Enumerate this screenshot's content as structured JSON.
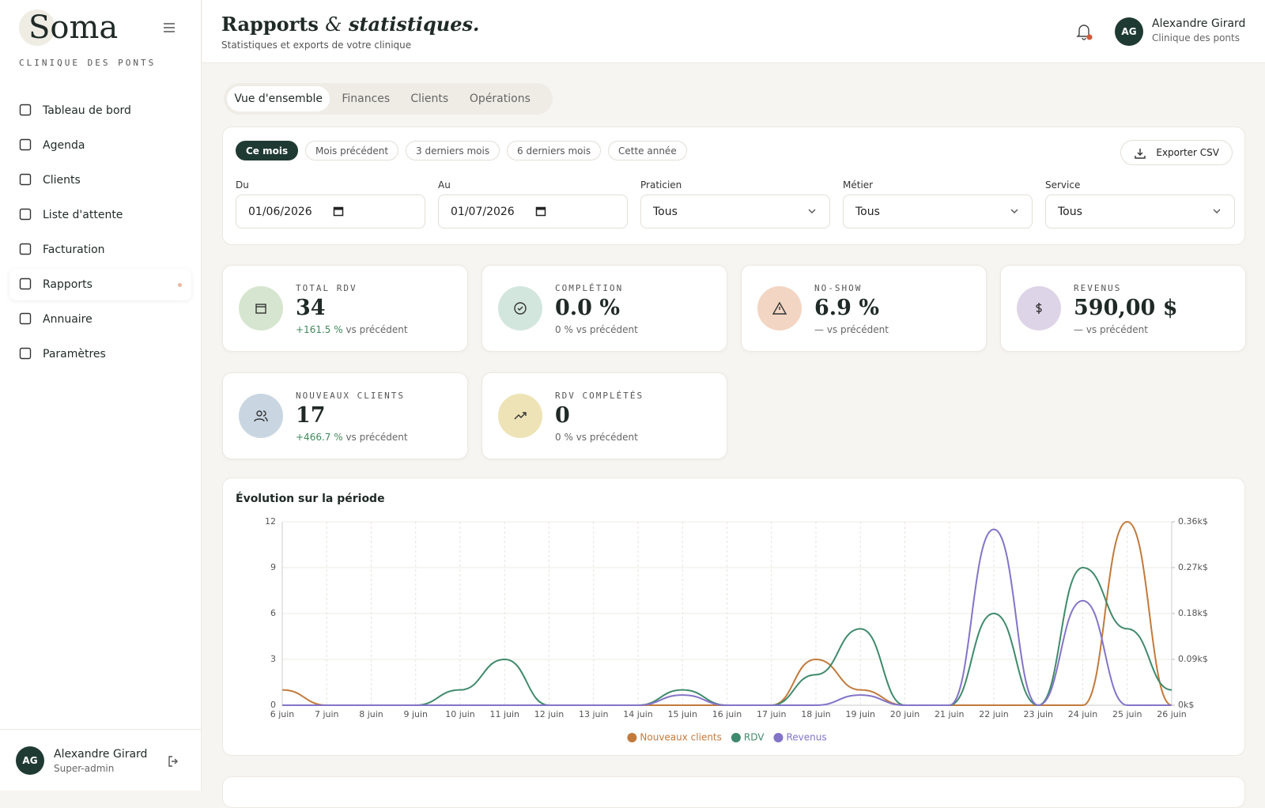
{
  "sidebar": {
    "brand": "Soma",
    "subtitle": "CLINIQUE DES PONTS",
    "nav": [
      "Tableau de bord",
      "Agenda",
      "Clients",
      "Liste d'attente",
      "Facturation",
      "Rapports",
      "Annuaire",
      "Paramètres"
    ],
    "active": 5,
    "user": {
      "initials": "AG",
      "name": "Alexandre Girard",
      "role": "Super-admin"
    }
  },
  "header": {
    "title": "Rapports",
    "title_amp": "&",
    "title_em": "statistiques.",
    "subtitle": "Statistiques et exports de votre clinique",
    "user": {
      "initials": "AG",
      "name": "Alexandre Girard",
      "clinic": "Clinique des ponts"
    }
  },
  "tabs": {
    "items": [
      "Vue d'ensemble",
      "Finances",
      "Clients",
      "Opérations"
    ],
    "active": 0
  },
  "filters": {
    "presets": [
      "Ce mois",
      "Mois précédent",
      "3 derniers mois",
      "6 derniers mois",
      "Cette année"
    ],
    "active_preset": 0,
    "export": "Exporter CSV",
    "fields": [
      {
        "label": "Du",
        "value": "01/06/2026"
      },
      {
        "label": "Au",
        "value": "01/07/2026"
      },
      {
        "label": "Praticien",
        "value": "Tous"
      },
      {
        "label": "Métier",
        "value": "Tous"
      },
      {
        "label": "Service",
        "value": "Tous"
      }
    ]
  },
  "kpis": [
    {
      "label": "TOTAL RDV",
      "value": "34",
      "change": "+161.5 %",
      "note": "vs précédent"
    },
    {
      "label": "COMPLÉTION",
      "value": "0.0 %",
      "change": "0 %",
      "note": "vs précédent"
    },
    {
      "label": "NO-SHOW",
      "value": "6.9 %",
      "change": "—",
      "note": "vs précédent"
    },
    {
      "label": "REVENUS",
      "value": "590,00 $",
      "change": "—",
      "note": "vs précédent"
    },
    {
      "label": "NOUVEAUX CLIENTS",
      "value": "17",
      "change": "+466.7 %",
      "note": "vs précédent"
    },
    {
      "label": "RDV COMPLÉTÉS",
      "value": "0",
      "change": "0 %",
      "note": "vs précédent"
    }
  ],
  "chart_data": {
    "type": "line",
    "title": "Évolution sur la période",
    "categories": [
      "6 juin",
      "7 juin",
      "8 juin",
      "9 juin",
      "10 juin",
      "11 juin",
      "12 juin",
      "13 juin",
      "14 juin",
      "15 juin",
      "16 juin",
      "17 juin",
      "18 juin",
      "19 juin",
      "20 juin",
      "21 juin",
      "22 juin",
      "23 juin",
      "24 juin",
      "25 juin",
      "26 juin"
    ],
    "series": [
      {
        "name": "Nouveaux clients",
        "color": "#c27a3c",
        "values": [
          1,
          0,
          0,
          0,
          0,
          0,
          0,
          0,
          0,
          0,
          0,
          0,
          3,
          1,
          0,
          0,
          0,
          0,
          0,
          12,
          0
        ]
      },
      {
        "name": "RDV",
        "color": "#3f8a6c",
        "values": [
          0,
          0,
          0,
          0,
          1,
          3,
          0,
          0,
          0,
          1,
          0,
          0,
          2,
          5,
          0,
          0,
          6,
          0,
          9,
          5,
          1
        ]
      },
      {
        "name": "Revenus",
        "color": "#8474c8",
        "axis": "y2",
        "values": [
          0,
          0,
          0,
          0,
          0,
          0,
          0,
          0,
          0,
          20,
          0,
          0,
          0,
          20,
          0,
          0,
          345,
          0,
          205,
          0,
          0
        ]
      }
    ],
    "ylim": [
      0,
      12
    ],
    "yticks": [
      0,
      3,
      6,
      9,
      12
    ],
    "y2lim": [
      0,
      360
    ],
    "y2ticks": [
      {
        "value": 0,
        "label": "0k$"
      },
      {
        "value": 90,
        "label": "0.09k$"
      },
      {
        "value": 180,
        "label": "0.18k$"
      },
      {
        "value": 270,
        "label": "0.27k$"
      },
      {
        "value": 360,
        "label": "0.36k$"
      }
    ],
    "grid": true,
    "legend": "bottom"
  }
}
